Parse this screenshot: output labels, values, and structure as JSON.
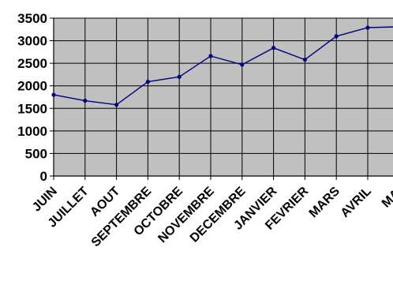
{
  "chart_data": {
    "type": "line",
    "categories": [
      "JUIN",
      "JUILLET",
      "AOUT",
      "SEPTEMBRE",
      "OCTOBRE",
      "NOVEMBRE",
      "DECEMBRE",
      "JANVIER",
      "FEVRIER",
      "MARS",
      "AVRIL",
      "MAI"
    ],
    "series": [
      {
        "values": [
          1800,
          1670,
          1580,
          2090,
          2200,
          2660,
          2470,
          2840,
          2580,
          3100,
          3290,
          3310
        ]
      }
    ],
    "ylim": [
      0,
      3500
    ],
    "yticks": [
      0,
      500,
      1000,
      1500,
      2000,
      2500,
      3000,
      3500
    ],
    "grid": true,
    "legend": "none",
    "colors": {
      "plot_background": "#c0c0c0",
      "gridline": "#000000",
      "line": "#000080",
      "marker": "#000080"
    }
  }
}
